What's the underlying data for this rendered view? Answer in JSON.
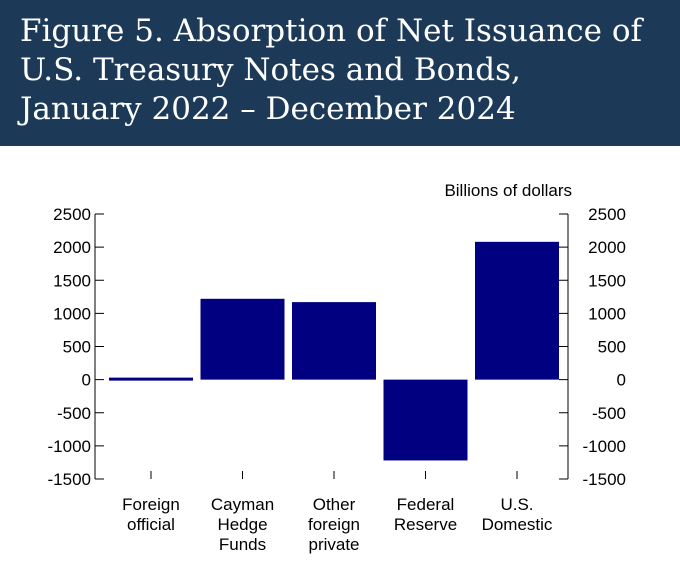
{
  "header": {
    "title_line1": "Figure 5. Absorption of Net Issuance of",
    "title_line2": "U.S. Treasury Notes and Bonds,",
    "title_line3": "January 2022 – December 2024"
  },
  "colors": {
    "header_bg": "#1c3a57",
    "bar": "#000080"
  },
  "chart_data": {
    "type": "bar",
    "title": "Figure 5. Absorption of Net Issuance of U.S. Treasury Notes and Bonds, January 2022 – December 2024",
    "units_label": "Billions of dollars",
    "categories": [
      [
        "Foreign",
        "official"
      ],
      [
        "Cayman",
        "Hedge",
        "Funds"
      ],
      [
        "Other",
        "foreign",
        "private"
      ],
      [
        "Federal",
        "Reserve"
      ],
      [
        "U.S.",
        "Domestic"
      ]
    ],
    "values": [
      30,
      1220,
      1170,
      -1220,
      2080
    ],
    "ylim": [
      -1500,
      2500
    ],
    "yticks": [
      2500,
      2000,
      1500,
      1000,
      500,
      0,
      -500,
      -1000,
      -1500
    ],
    "ytick_labels": [
      "2500",
      "2000",
      "1500",
      "1000",
      "500",
      "0",
      "-500",
      "-1000",
      "-1500"
    ],
    "xlabel": "",
    "ylabel": "Billions of dollars",
    "grid": false,
    "legend": "none"
  }
}
